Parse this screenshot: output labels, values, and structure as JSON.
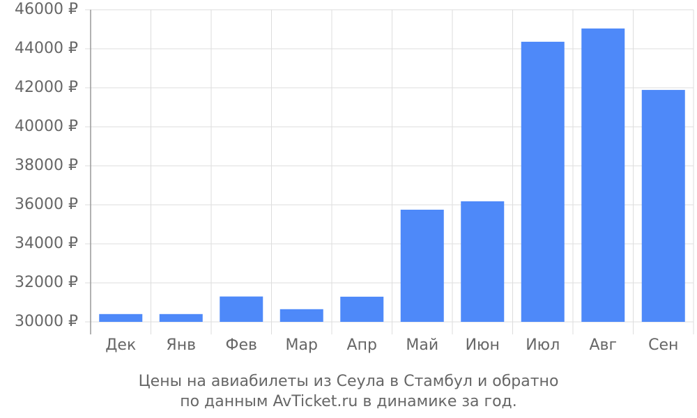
{
  "chart_data": {
    "type": "bar",
    "title": [
      "Цены на авиабилеты из Сеула в Стамбул и обратно",
      "по данным AvTicket.ru в динамике за год."
    ],
    "categories": [
      "Дек",
      "Янв",
      "Фев",
      "Мар",
      "Апр",
      "Май",
      "Июн",
      "Июл",
      "Авг",
      "Сен"
    ],
    "values": [
      30400,
      30400,
      31300,
      30650,
      31290,
      35750,
      36180,
      44360,
      45040,
      41890
    ],
    "color": "#4e89f9",
    "ylim": [
      30000,
      46000
    ],
    "yticks": [
      {
        "value": 30000,
        "label": "30000 ₽"
      },
      {
        "value": 32000,
        "label": "32000 ₽"
      },
      {
        "value": 34000,
        "label": "34000 ₽"
      },
      {
        "value": 36000,
        "label": "36000 ₽"
      },
      {
        "value": 38000,
        "label": "38000 ₽"
      },
      {
        "value": 40000,
        "label": "40000 ₽"
      },
      {
        "value": 42000,
        "label": "42000 ₽"
      },
      {
        "value": 44000,
        "label": "44000 ₽"
      },
      {
        "value": 46000,
        "label": "46000 ₽"
      }
    ],
    "grid": true
  }
}
